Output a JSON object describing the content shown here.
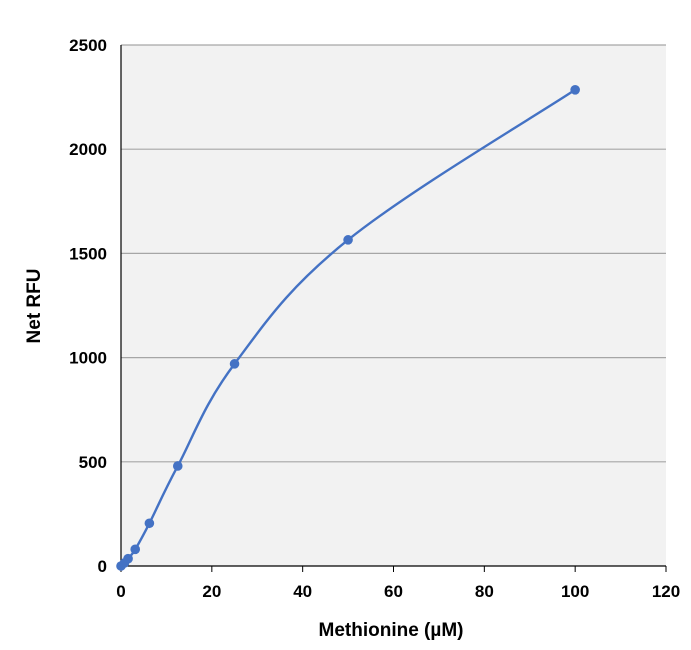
{
  "chart_data": {
    "type": "scatter",
    "title": "",
    "xlabel": "Methionine (µM)",
    "ylabel": "Net RFU",
    "xlim": [
      0,
      120
    ],
    "ylim": [
      0,
      2500
    ],
    "x_ticks": [
      "0",
      "20",
      "40",
      "60",
      "80",
      "100",
      "120"
    ],
    "y_ticks": [
      "0",
      "500",
      "1000",
      "1500",
      "2000",
      "2500"
    ],
    "grid": "horizontal",
    "legend": "none",
    "smooth_line": true,
    "series": [
      {
        "color": "#4472c4",
        "points": [
          {
            "x": 0,
            "y": 0
          },
          {
            "x": 0.78,
            "y": 15
          },
          {
            "x": 1.56,
            "y": 35
          },
          {
            "x": 3.13,
            "y": 80
          },
          {
            "x": 6.25,
            "y": 205
          },
          {
            "x": 12.5,
            "y": 480
          },
          {
            "x": 25,
            "y": 970
          },
          {
            "x": 50,
            "y": 1565
          },
          {
            "x": 100,
            "y": 2285
          }
        ]
      }
    ],
    "colors": {
      "plot_background": "#f2f2f2",
      "gridline": "#a6a6a6",
      "axis": "#000000"
    }
  }
}
